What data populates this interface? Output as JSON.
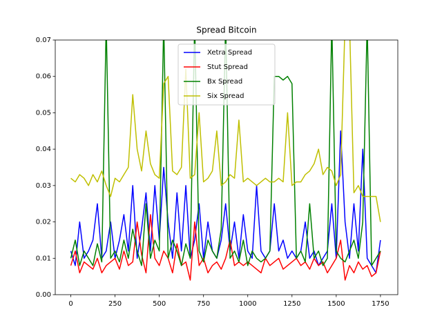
{
  "chart_data": {
    "type": "line",
    "title": "Spread Bitcoin",
    "x": [
      0,
      25,
      50,
      75,
      100,
      125,
      150,
      175,
      200,
      225,
      250,
      275,
      300,
      325,
      350,
      375,
      400,
      425,
      450,
      475,
      500,
      525,
      550,
      575,
      600,
      625,
      650,
      675,
      700,
      725,
      750,
      775,
      800,
      825,
      850,
      875,
      900,
      925,
      950,
      975,
      1000,
      1025,
      1050,
      1075,
      1100,
      1125,
      1150,
      1175,
      1200,
      1225,
      1250,
      1275,
      1300,
      1325,
      1350,
      1375,
      1400,
      1425,
      1450,
      1475,
      1500,
      1525,
      1550,
      1575,
      1600,
      1625,
      1650,
      1675,
      1700,
      1725,
      1750
    ],
    "series": [
      {
        "name": "Xetra Spread",
        "color": "#0000ff",
        "values": [
          0.012,
          0.008,
          0.02,
          0.01,
          0.012,
          0.015,
          0.025,
          0.01,
          0.012,
          0.02,
          0.01,
          0.015,
          0.022,
          0.012,
          0.03,
          0.01,
          0.018,
          0.028,
          0.012,
          0.03,
          0.015,
          0.035,
          0.02,
          0.01,
          0.028,
          0.012,
          0.03,
          0.01,
          0.015,
          0.025,
          0.01,
          0.02,
          0.012,
          0.01,
          0.015,
          0.025,
          0.012,
          0.02,
          0.01,
          0.022,
          0.012,
          0.01,
          0.03,
          0.012,
          0.01,
          0.012,
          0.025,
          0.012,
          0.015,
          0.01,
          0.012,
          0.01,
          0.012,
          0.02,
          0.01,
          0.012,
          0.008,
          0.01,
          0.012,
          0.025,
          0.01,
          0.045,
          0.02,
          0.01,
          0.025,
          0.012,
          0.04,
          0.01,
          0.008,
          0.006,
          0.015
        ]
      },
      {
        "name": "Stut Spread",
        "color": "#ff0000",
        "values": [
          0.008,
          0.012,
          0.006,
          0.009,
          0.008,
          0.007,
          0.01,
          0.006,
          0.008,
          0.009,
          0.01,
          0.007,
          0.012,
          0.008,
          0.009,
          0.02,
          0.011,
          0.006,
          0.022,
          0.01,
          0.008,
          0.012,
          0.01,
          0.006,
          0.014,
          0.008,
          0.009,
          0.004,
          0.02,
          0.008,
          0.01,
          0.006,
          0.008,
          0.009,
          0.007,
          0.01,
          0.015,
          0.008,
          0.009,
          0.008,
          0.009,
          0.008,
          0.007,
          0.006,
          0.01,
          0.008,
          0.009,
          0.01,
          0.007,
          0.008,
          0.009,
          0.01,
          0.008,
          0.009,
          0.007,
          0.01,
          0.008,
          0.009,
          0.006,
          0.008,
          0.01,
          0.015,
          0.004,
          0.008,
          0.006,
          0.009,
          0.007,
          0.008,
          0.005,
          0.006,
          0.012
        ]
      },
      {
        "name": "Bx Spread",
        "color": "#008000",
        "values": [
          0.01,
          0.015,
          0.008,
          0.012,
          0.01,
          0.008,
          0.014,
          0.009,
          0.075,
          0.01,
          0.012,
          0.009,
          0.015,
          0.01,
          0.018,
          0.012,
          0.008,
          0.025,
          0.01,
          0.015,
          0.012,
          0.075,
          0.01,
          0.015,
          0.012,
          0.008,
          0.014,
          0.01,
          0.075,
          0.012,
          0.009,
          0.015,
          0.012,
          0.01,
          0.018,
          0.075,
          0.01,
          0.012,
          0.009,
          0.015,
          0.008,
          0.012,
          0.01,
          0.009,
          0.01,
          0.012,
          0.06,
          0.06,
          0.059,
          0.06,
          0.058,
          0.01,
          0.012,
          0.009,
          0.025,
          0.01,
          0.012,
          0.008,
          0.01,
          0.075,
          0.012,
          0.01,
          0.009,
          0.012,
          0.015,
          0.01,
          0.02,
          0.075,
          0.008,
          0.01,
          0.012
        ]
      },
      {
        "name": "Six Spread",
        "color": "#bfbf00",
        "values": [
          0.032,
          0.031,
          0.033,
          0.032,
          0.03,
          0.033,
          0.031,
          0.034,
          0.03,
          0.027,
          0.032,
          0.031,
          0.033,
          0.035,
          0.055,
          0.04,
          0.034,
          0.045,
          0.036,
          0.033,
          0.032,
          0.058,
          0.06,
          0.034,
          0.033,
          0.035,
          0.062,
          0.032,
          0.033,
          0.05,
          0.031,
          0.032,
          0.034,
          0.045,
          0.03,
          0.031,
          0.033,
          0.032,
          0.048,
          0.031,
          0.032,
          0.031,
          0.03,
          0.031,
          0.032,
          0.031,
          0.031,
          0.032,
          0.031,
          0.05,
          0.03,
          0.031,
          0.031,
          0.033,
          0.034,
          0.036,
          0.04,
          0.033,
          0.035,
          0.034,
          0.03,
          0.033,
          0.075,
          0.075,
          0.028,
          0.03,
          0.027,
          0.027,
          0.027,
          0.027,
          0.02
        ]
      }
    ],
    "xlim": [
      -88,
      1848
    ],
    "ylim": [
      0,
      0.07
    ],
    "xticks": [
      0,
      250,
      500,
      750,
      1000,
      1250,
      1500,
      1750
    ],
    "yticks": [
      {
        "value": 0,
        "label": "0.00"
      },
      {
        "value": 0.01,
        "label": "0.01"
      },
      {
        "value": 0.02,
        "label": "0.02"
      },
      {
        "value": 0.03,
        "label": "0.03"
      },
      {
        "value": 0.04,
        "label": "0.04"
      },
      {
        "value": 0.05,
        "label": "0.05"
      },
      {
        "value": 0.06,
        "label": "0.06"
      },
      {
        "value": 0.07,
        "label": "0.07"
      }
    ],
    "legend": "upper center"
  }
}
